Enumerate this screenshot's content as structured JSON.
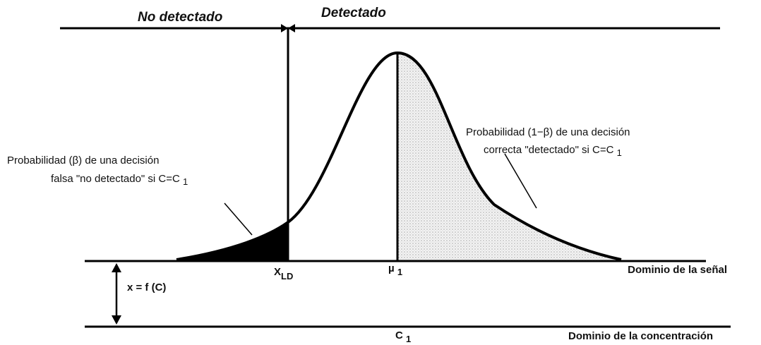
{
  "header": {
    "left": "No detectado",
    "right": "Detectado"
  },
  "annotations": {
    "correct": {
      "line1": "Probabilidad (1−β) de una decisión",
      "line2": "correcta \"detectado\" si C=C",
      "sub": "1"
    },
    "false": {
      "line1": "Probabilidad (β) de una decisión",
      "line2": "falsa \"no detectado\"  si C=C",
      "sub": "1"
    }
  },
  "axis_labels": {
    "xld": {
      "main": "X",
      "sub": "LD"
    },
    "mu": {
      "main": "µ",
      "sub": "1"
    },
    "signal_domain": "Dominio  de la señal",
    "function": "x = f (C)",
    "c1": {
      "main": "C",
      "sub": "1"
    },
    "concentration_domain": "Dominio de la concentración"
  }
}
